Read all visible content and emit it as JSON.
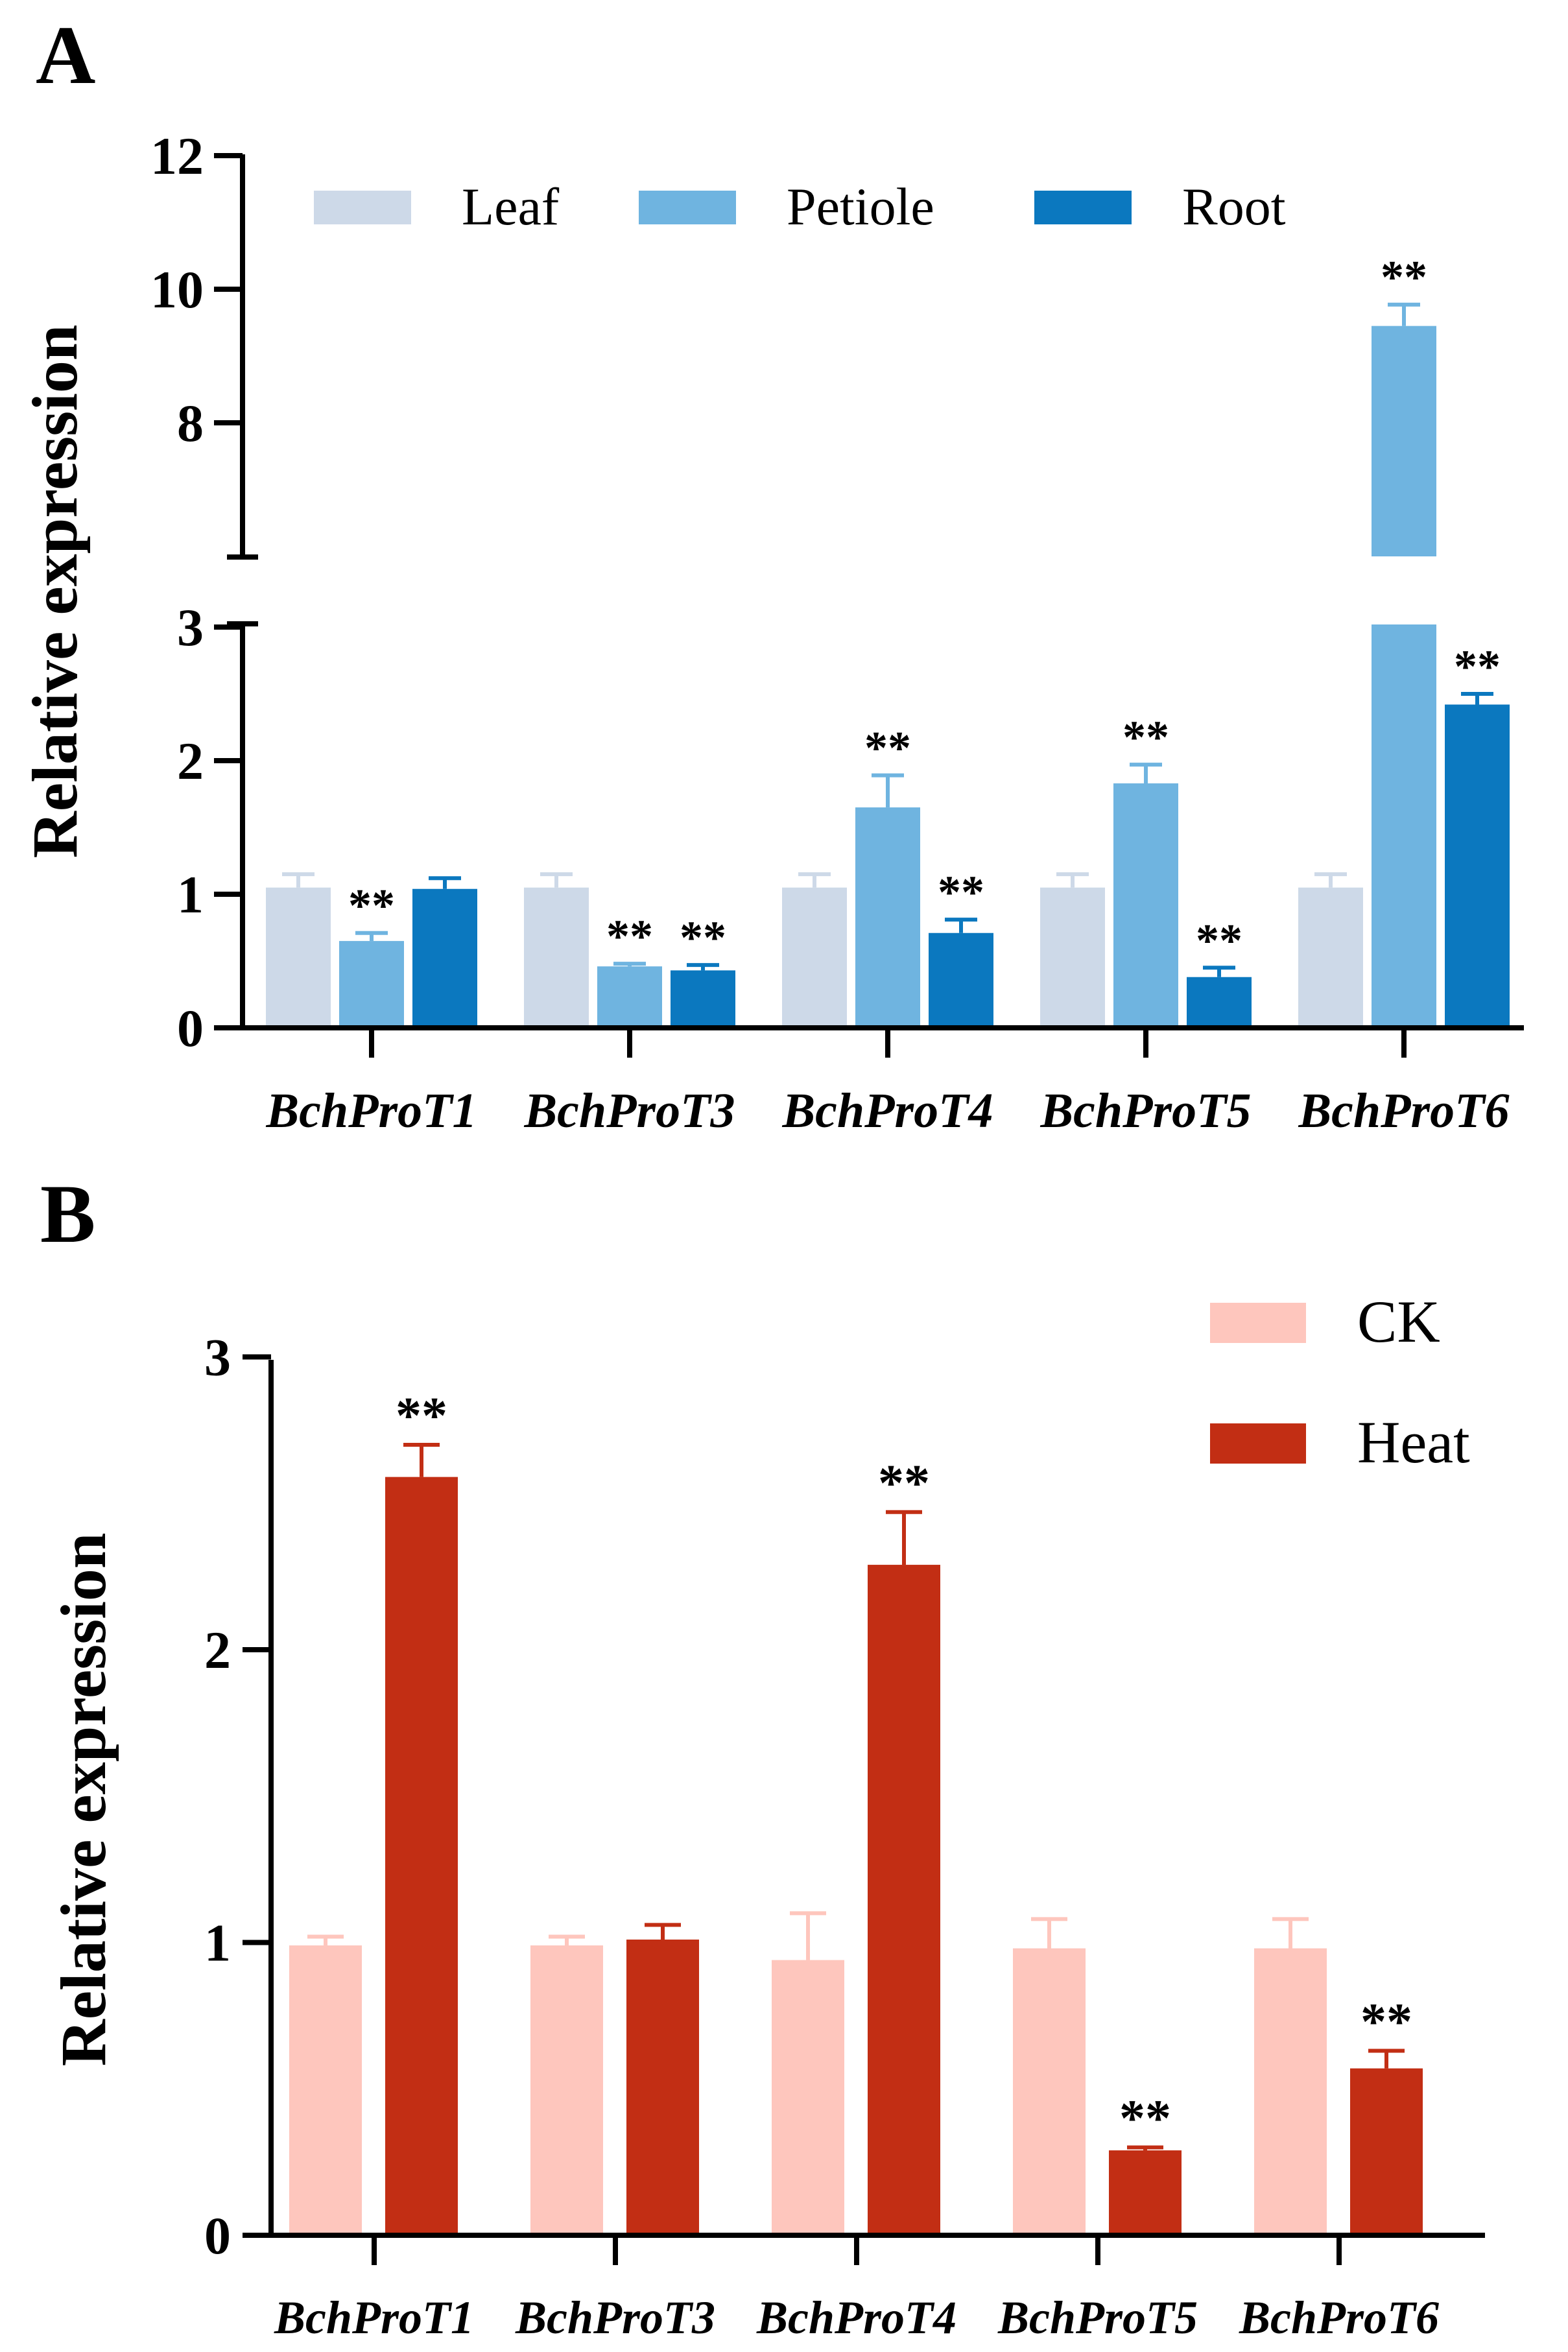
{
  "colors": {
    "leaf": "#cdd9e8",
    "petiole": "#6fb4e0",
    "root": "#0b78bf",
    "ck": "#fec6bd",
    "heat": "#c22e14",
    "axis": "#000000"
  },
  "chart_data": [
    {
      "type": "bar",
      "panel_label": "A",
      "ylabel": "Relative expression",
      "xlabel": "",
      "categories": [
        "BchProT1",
        "BchProT3",
        "BchProT4",
        "BchProT5",
        "BchProT6"
      ],
      "y_axis_break": [
        3,
        6
      ],
      "ylim": [
        0,
        12
      ],
      "y_ticks_lower": [
        "0",
        "1",
        "2",
        "3"
      ],
      "y_ticks_upper": [
        "8",
        "10",
        "12"
      ],
      "legend": [
        "Leaf",
        "Petiole",
        "Root"
      ],
      "series": [
        {
          "name": "Leaf",
          "values": [
            1.05,
            1.05,
            1.05,
            1.05,
            1.05
          ],
          "errors": [
            0.1,
            0.1,
            0.1,
            0.1,
            0.1
          ],
          "labels": [
            "",
            "",
            "",
            "",
            ""
          ]
        },
        {
          "name": "Petiole",
          "values": [
            0.65,
            0.46,
            1.65,
            1.83,
            9.45
          ],
          "errors": [
            0.06,
            0.02,
            0.24,
            0.14,
            0.32
          ],
          "labels": [
            "**",
            "**",
            "**",
            "**",
            "**"
          ]
        },
        {
          "name": "Root",
          "values": [
            1.04,
            0.43,
            0.71,
            0.38,
            2.42
          ],
          "errors": [
            0.08,
            0.04,
            0.1,
            0.07,
            0.08
          ],
          "labels": [
            "",
            "**",
            "**",
            "**",
            "**"
          ]
        }
      ]
    },
    {
      "type": "bar",
      "panel_label": "B",
      "ylabel": "Relative expression",
      "xlabel": "",
      "categories": [
        "BchProT1",
        "BchProT3",
        "BchProT4",
        "BchProT5",
        "BchProT6"
      ],
      "ylim": [
        0,
        3
      ],
      "y_ticks": [
        "0",
        "1",
        "2",
        "3"
      ],
      "legend": [
        "CK",
        "Heat"
      ],
      "series": [
        {
          "name": "CK",
          "values": [
            0.99,
            0.99,
            0.94,
            0.98,
            0.98
          ],
          "errors": [
            0.03,
            0.03,
            0.16,
            0.1,
            0.1
          ],
          "labels": [
            "",
            "",
            "",
            "",
            ""
          ]
        },
        {
          "name": "Heat",
          "values": [
            2.59,
            1.01,
            2.29,
            0.29,
            0.57
          ],
          "errors": [
            0.11,
            0.05,
            0.18,
            0.01,
            0.06
          ],
          "labels": [
            "**",
            "",
            "**",
            "**",
            "**"
          ]
        }
      ]
    }
  ]
}
